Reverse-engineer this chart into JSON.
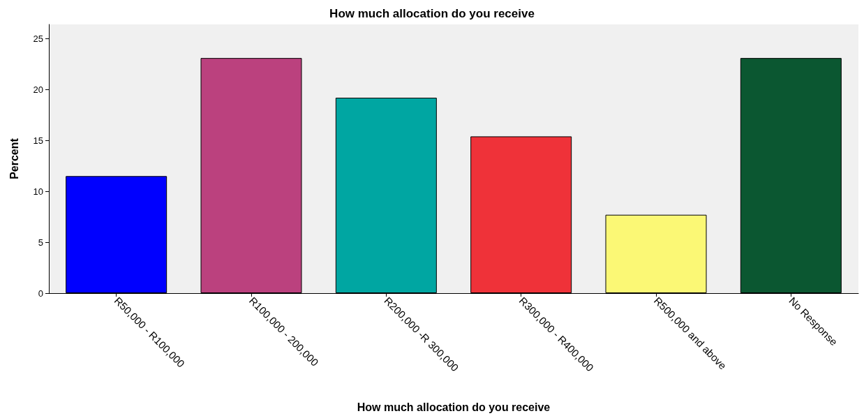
{
  "chart_data": {
    "type": "bar",
    "title": "How much allocation do you receive",
    "xlabel": "How much allocation do you receive",
    "ylabel": "Percent",
    "categories": [
      "R50,000 - R100,000",
      "R100,000 - 200,000",
      "R200,000 -R 300,000",
      "R300,000 - R400,000",
      "R500,000 and above",
      "No Response"
    ],
    "values": [
      11.5,
      23.1,
      19.2,
      15.4,
      7.7,
      23.1
    ],
    "colors": [
      "#0000ff",
      "#bb417e",
      "#00a6a2",
      "#ef3239",
      "#fbf875",
      "#0b5731"
    ],
    "ylim": [
      0,
      26.4
    ],
    "yticks": [
      0,
      5,
      10,
      15,
      20,
      25
    ],
    "grid": false
  }
}
